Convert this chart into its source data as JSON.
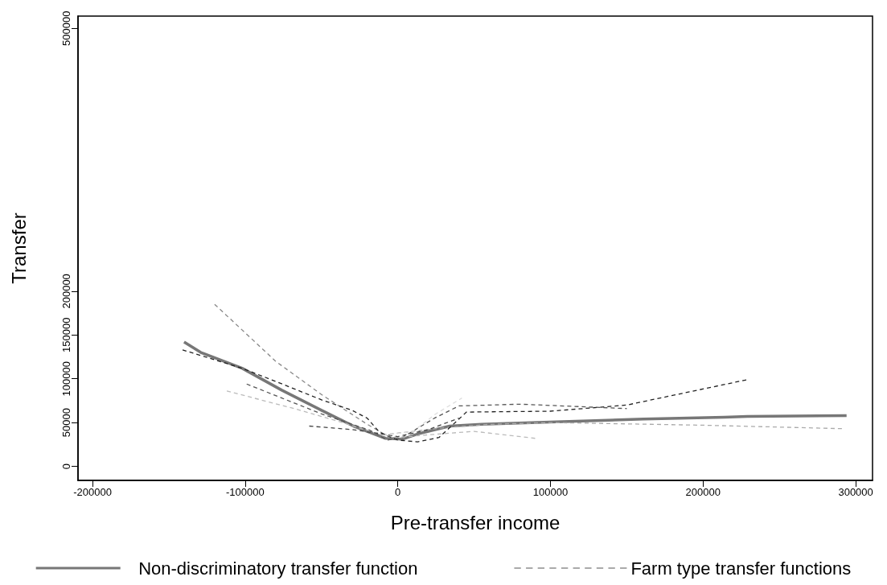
{
  "chart_data": {
    "type": "line",
    "xlabel": "Pre-transfer income",
    "ylabel": "Transfer",
    "xlim": [
      -209500,
      311000
    ],
    "xticks": [
      -200000,
      -100000,
      0,
      100000,
      200000,
      300000
    ],
    "ylim": [
      -16000,
      514000
    ],
    "yticks": [
      0,
      50000,
      100000,
      150000,
      200000,
      500000
    ],
    "grid": false,
    "legend": "bottom",
    "marker": "none",
    "series": [
      {
        "name": "Non-discriminatory transfer function",
        "color": "#777777",
        "line_style": "solid",
        "x": [
          -140000,
          -129000,
          -102000,
          -76000,
          -50000,
          -29000,
          -8000,
          3000,
          13000,
          34000,
          55000,
          108000,
          161000,
          214000,
          229000,
          294000
        ],
        "values": [
          142000,
          130000,
          112000,
          87000,
          64000,
          46000,
          32000,
          31000,
          37000,
          46000,
          48000,
          51000,
          54000,
          56000,
          57000,
          58000
        ]
      },
      {
        "name": "Farm type transfer functions",
        "color": "#aaaaaa",
        "line_style": "dashed",
        "x": [
          -10000,
          30000,
          60000,
          100000,
          200000,
          292000
        ],
        "values": [
          36000,
          44000,
          48000,
          50000,
          47000,
          43000
        ]
      },
      {
        "color": "#888888",
        "line_style": "dashed",
        "x": [
          -120000,
          -80000,
          -50000,
          -20000,
          -5000,
          5000
        ],
        "values": [
          185000,
          120000,
          82000,
          48000,
          33000,
          32000
        ]
      },
      {
        "color": "#222222",
        "line_style": "dashed",
        "x": [
          -141000,
          -102000,
          -80000,
          -50000,
          -30000,
          -20000,
          -12000,
          0,
          13000,
          27000,
          45000,
          100000,
          150000,
          229000
        ],
        "values": [
          133000,
          112000,
          97000,
          76000,
          64000,
          55000,
          39000,
          30000,
          28000,
          33000,
          62000,
          63000,
          70000,
          99000
        ]
      },
      {
        "color": "#555555",
        "line_style": "dashed",
        "x": [
          -99000,
          -76000,
          -50000,
          -18000,
          -7000,
          3000,
          24000,
          40000,
          80000,
          150000
        ],
        "values": [
          94000,
          78000,
          60000,
          41000,
          30000,
          33000,
          55000,
          69000,
          71000,
          66000
        ]
      },
      {
        "color": "#bbbbbb",
        "line_style": "dashed",
        "x": [
          -112000,
          -70000,
          -40000,
          -15000,
          0,
          20000,
          50000,
          90000
        ],
        "values": [
          86000,
          67000,
          52000,
          38000,
          33000,
          36000,
          40000,
          32000
        ]
      },
      {
        "color": "#444444",
        "line_style": "dashed",
        "x": [
          -58000,
          -30000,
          -10000,
          0,
          20000,
          40000
        ],
        "values": [
          46000,
          42000,
          37000,
          34000,
          42000,
          55000
        ]
      },
      {
        "color": "#dddddd",
        "line_style": "dashed",
        "x": [
          -10000,
          10000,
          25000,
          42000
        ],
        "values": [
          35000,
          40000,
          60000,
          78000
        ]
      }
    ]
  }
}
